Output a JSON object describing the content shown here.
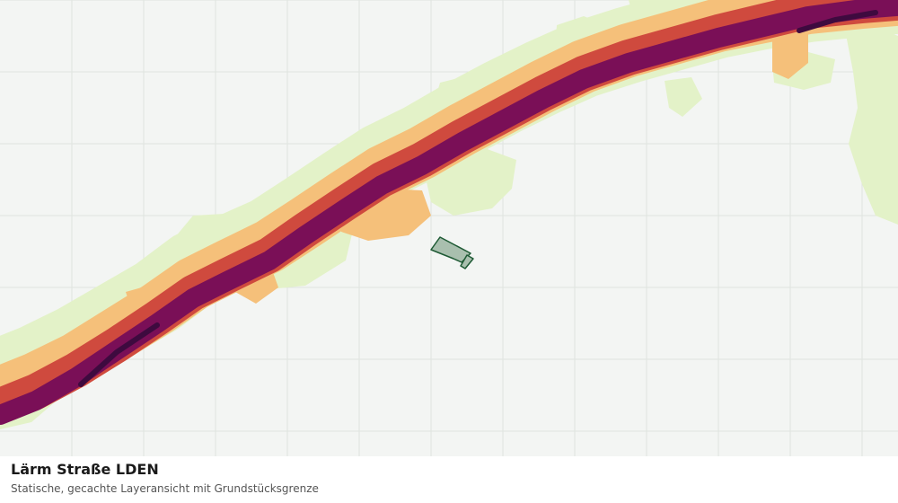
{
  "caption": {
    "title": "Lärm Straße LDEN",
    "subtitle": "Statische, gecachte Layeransicht mit Grundstücksgrenze"
  },
  "map": {
    "layer": "noise-road-lden",
    "grid": true,
    "colors": {
      "background": "#f3f5f3",
      "grid": "#dfe3df",
      "noise_band_1": "#e3f2c8",
      "noise_band_2": "#f5c07a",
      "noise_band_3": "#cf4a3e",
      "noise_band_4": "#7a0f57",
      "noise_band_5": "#3e0a3f",
      "parcel_fill": "#a9bfae",
      "parcel_stroke": "#1e5a34"
    }
  }
}
